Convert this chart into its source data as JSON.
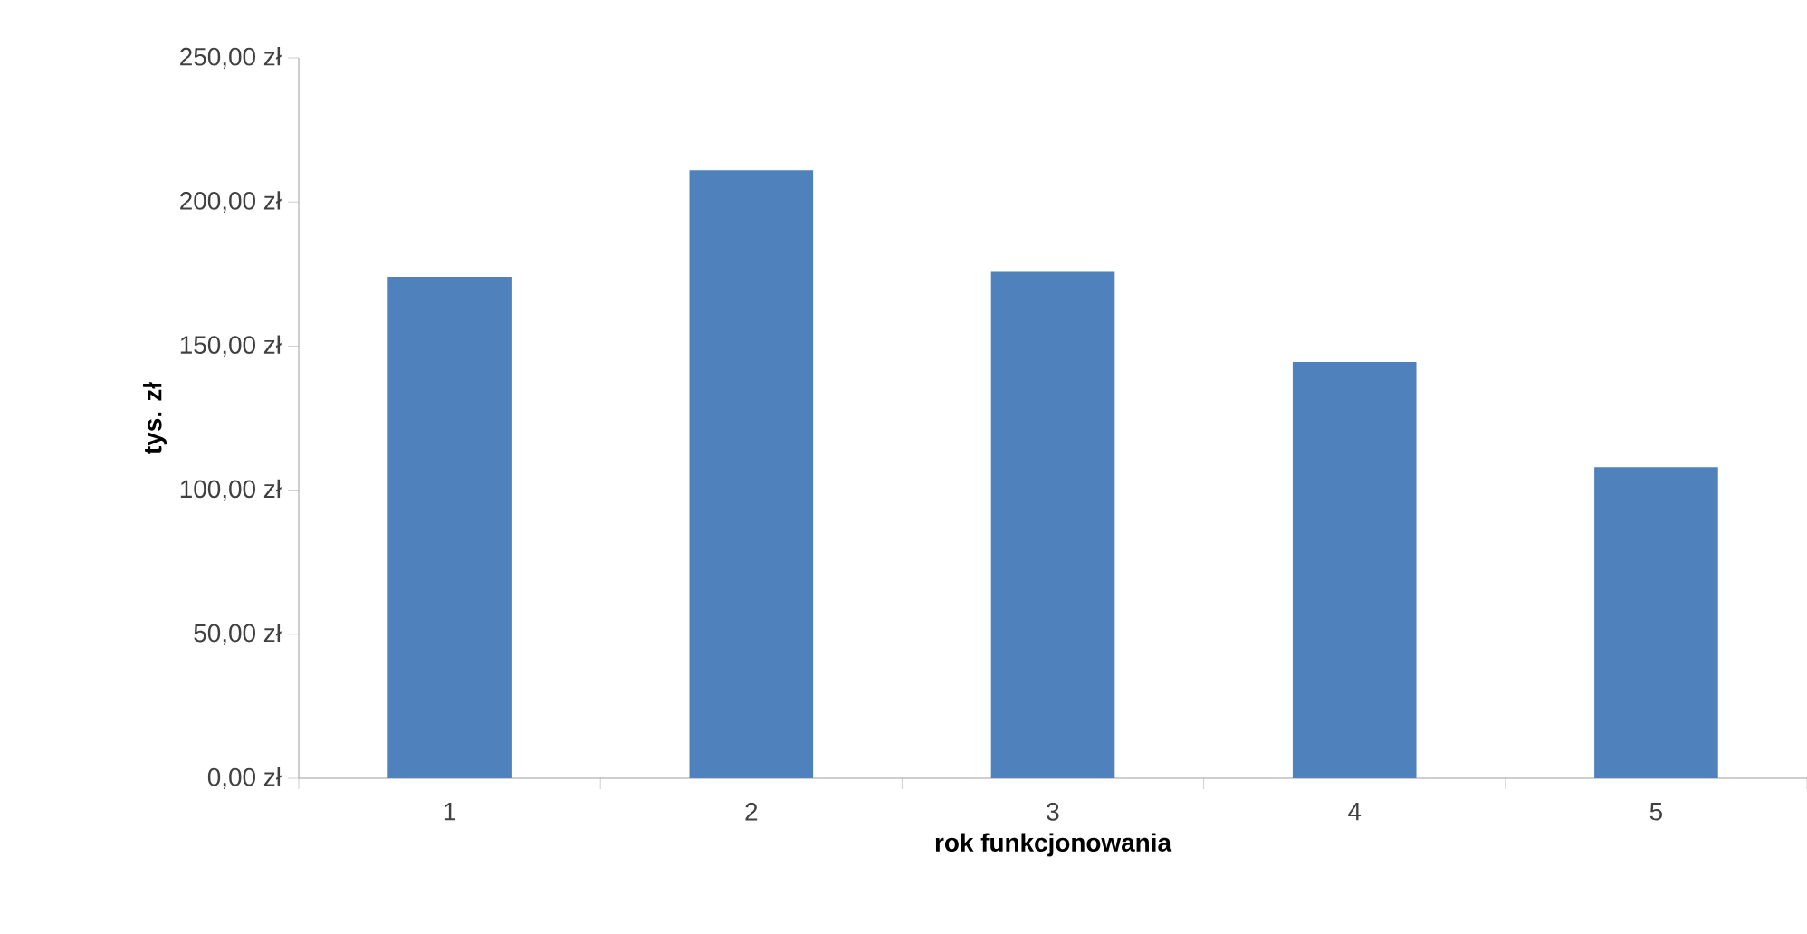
{
  "chart_data": {
    "type": "bar",
    "xlabel": "rok funkcjonowania",
    "ylabel": "tys. zł",
    "categories": [
      "1",
      "2",
      "3",
      "4",
      "5"
    ],
    "values": [
      174,
      211,
      176,
      144.5,
      108
    ],
    "color": "#4f81bd",
    "ylim": [
      0,
      250
    ],
    "yticks": [
      {
        "value": 0,
        "label": "0,00 zł"
      },
      {
        "value": 50,
        "label": "50,00 zł"
      },
      {
        "value": 100,
        "label": "100,00 zł"
      },
      {
        "value": 150,
        "label": "150,00 zł"
      },
      {
        "value": 200,
        "label": "200,00 zł"
      },
      {
        "value": 250,
        "label": "250,00 zł"
      }
    ]
  }
}
